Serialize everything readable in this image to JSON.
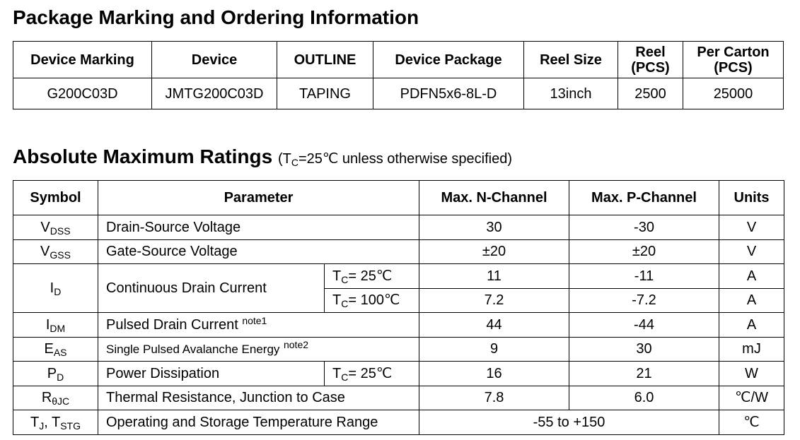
{
  "ordering": {
    "title": "Package Marking and Ordering Information",
    "headers": [
      "Device Marking",
      "Device",
      "OUTLINE",
      "Device Package",
      "Reel Size",
      "Reel (PCS)",
      "Per Carton (PCS)"
    ],
    "rows": [
      [
        "G200C03D",
        "JMTG200C03D",
        "TAPING",
        "PDFN5x6-8L-D",
        "13inch",
        "2500",
        "25000"
      ]
    ]
  },
  "ratings": {
    "title": "Absolute Maximum Ratings",
    "subtitle": [
      "(T",
      "C",
      "=25℃ unless otherwise specified)"
    ],
    "headers": [
      "Symbol",
      "Parameter",
      "Max. N-Channel",
      "Max. P-Channel",
      "Units"
    ],
    "rows": [
      {
        "symbol": [
          "V",
          "DSS"
        ],
        "parameter": "Drain-Source Voltage",
        "n": "30",
        "p": "-30",
        "units": "V"
      },
      {
        "symbol": [
          "V",
          "GSS"
        ],
        "parameter": "Gate-Source Voltage",
        "n": "±20",
        "p": "±20",
        "units": "V"
      },
      {
        "symbol": [
          "I",
          "D"
        ],
        "parameter": "Continuous Drain Current",
        "conditions": [
          [
            "T",
            "C",
            "= 25℃"
          ],
          [
            "T",
            "C",
            "= 100℃"
          ]
        ],
        "n": [
          "11",
          "7.2"
        ],
        "p": [
          "-11",
          "-7.2"
        ],
        "units": [
          "A",
          "A"
        ]
      },
      {
        "symbol": [
          "I",
          "DM"
        ],
        "parameter": "Pulsed Drain Current",
        "note": "note1",
        "n": "44",
        "p": "-44",
        "units": "A"
      },
      {
        "symbol": [
          "E",
          "AS"
        ],
        "parameter": "Single Pulsed Avalanche Energy",
        "note": "note2",
        "n": "9",
        "p": "30",
        "units": "mJ"
      },
      {
        "symbol": [
          "P",
          "D"
        ],
        "parameter": "Power Dissipation",
        "condition": [
          "T",
          "C",
          "= 25℃"
        ],
        "n": "16",
        "p": "21",
        "units": "W"
      },
      {
        "symbol": [
          "R",
          "θJC"
        ],
        "parameter": "Thermal Resistance, Junction to Case",
        "n": "7.8",
        "p": "6.0",
        "units": "℃/W"
      },
      {
        "symbol": [
          "T",
          "J",
          ", T",
          "STG"
        ],
        "parameter": "Operating and Storage Temperature Range",
        "range": "-55 to +150",
        "units": "℃"
      }
    ]
  }
}
